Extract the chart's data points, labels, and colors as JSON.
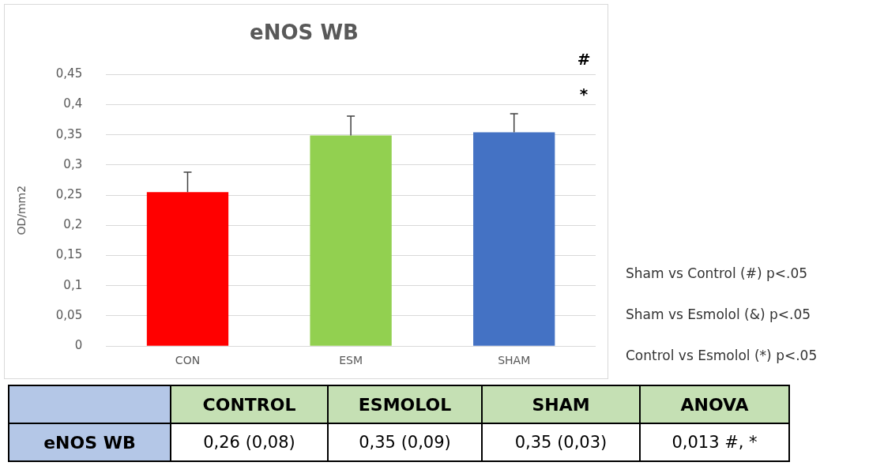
{
  "chart_data": {
    "type": "bar",
    "title": "eNOS WB",
    "ylabel": "OD/mm2",
    "categories": [
      "CON",
      "ESM",
      "SHAM"
    ],
    "values": [
      0.255,
      0.349,
      0.354
    ],
    "colors": [
      "#ff0000",
      "#92d050",
      "#4472c4"
    ],
    "errors": [
      [
        0.255,
        0.288
      ],
      [
        0.349,
        0.381
      ],
      [
        0.354,
        0.385
      ]
    ],
    "ylim": [
      0,
      0.45
    ],
    "yticks": [
      {
        "value": 0,
        "label": "0"
      },
      {
        "value": 0.05,
        "label": "0,05"
      },
      {
        "value": 0.1,
        "label": "0,1"
      },
      {
        "value": 0.15,
        "label": "0,15"
      },
      {
        "value": 0.2,
        "label": "0,2"
      },
      {
        "value": 0.25,
        "label": "0,25"
      },
      {
        "value": 0.3,
        "label": "0,3"
      },
      {
        "value": 0.35,
        "label": "0,35"
      },
      {
        "value": 0.4,
        "label": "0,4"
      },
      {
        "value": 0.45,
        "label": "0,45"
      }
    ],
    "grid": "y",
    "legend": false,
    "annotations": [
      "#",
      "*",
      "Sham vs Control (#) p<.05",
      "Sham vs Esmolol (&) p<.05",
      "Control vs Esmolol (*) p<.05",
      "CONTROL",
      "ESMOLOL",
      "SHAM",
      "ANOVA",
      "eNOS WB",
      "0,26 (0,08)",
      "0,35 (0,09)",
      "0,35 (0,03)",
      "0,013 #, *"
    ]
  }
}
